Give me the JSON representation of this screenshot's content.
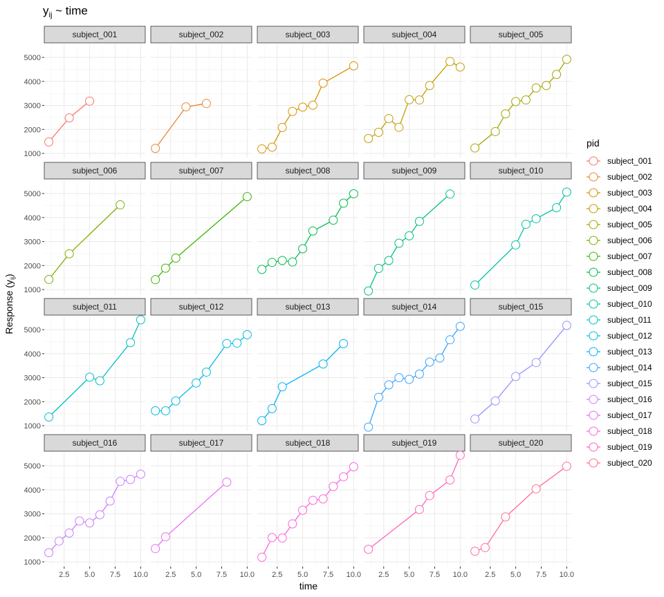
{
  "chart_data": {
    "type": "line",
    "title": "y",
    "title_sub": "ij",
    "title_rest": " ~ time",
    "xlabel": "time",
    "ylabel_main": "Response (y",
    "ylabel_sub": "ij",
    "ylabel_end": ")",
    "legend_title": "pid",
    "legend_position": "right",
    "facet_layout": "5 columns x 4 rows",
    "grid": true,
    "xlim": [
      0.55,
      10.45
    ],
    "ylim": [
      800,
      5550
    ],
    "x_ticks": [
      2.5,
      5.0,
      7.5,
      10.0
    ],
    "x_tick_labels": [
      "2.5",
      "5.0",
      "7.5",
      "10.0"
    ],
    "y_ticks": [
      1000,
      2000,
      3000,
      4000,
      5000
    ],
    "y_tick_labels": [
      "1000",
      "2000",
      "3000",
      "4000",
      "5000"
    ],
    "series": [
      {
        "name": "subject_001",
        "color": "#F8766D",
        "x": [
          1,
          3,
          5
        ],
        "y": [
          1480,
          2480,
          3180
        ]
      },
      {
        "name": "subject_002",
        "color": "#EA8331",
        "x": [
          1,
          4,
          6
        ],
        "y": [
          1210,
          2940,
          3080
        ]
      },
      {
        "name": "subject_003",
        "color": "#D89000",
        "x": [
          1,
          2,
          3,
          4,
          5,
          6,
          7,
          10
        ],
        "y": [
          1190,
          1260,
          2080,
          2750,
          2930,
          3010,
          3930,
          4650
        ]
      },
      {
        "name": "subject_004",
        "color": "#C09B00",
        "x": [
          1,
          2,
          3,
          4,
          5,
          6,
          7,
          9,
          10
        ],
        "y": [
          1620,
          1880,
          2450,
          2090,
          3240,
          3230,
          3830,
          4830,
          4600
        ]
      },
      {
        "name": "subject_005",
        "color": "#A3A500",
        "x": [
          1,
          3,
          4,
          5,
          6,
          7,
          8,
          9,
          10
        ],
        "y": [
          1230,
          1910,
          2650,
          3160,
          3230,
          3730,
          3830,
          4290,
          4920
        ]
      },
      {
        "name": "subject_006",
        "color": "#7CAE00",
        "x": [
          1,
          3,
          8
        ],
        "y": [
          1420,
          2490,
          4530
        ]
      },
      {
        "name": "subject_007",
        "color": "#39B600",
        "x": [
          1,
          2,
          3,
          10
        ],
        "y": [
          1410,
          1890,
          2310,
          4870
        ]
      },
      {
        "name": "subject_008",
        "color": "#00BB4E",
        "x": [
          1,
          2,
          3,
          4,
          5,
          6,
          8,
          9,
          10
        ],
        "y": [
          1840,
          2130,
          2210,
          2150,
          2700,
          3440,
          3890,
          4600,
          4990
        ]
      },
      {
        "name": "subject_009",
        "color": "#00BF7D",
        "x": [
          1,
          2,
          3,
          4,
          5,
          6,
          9
        ],
        "y": [
          940,
          1880,
          2210,
          2930,
          3240,
          3840,
          4980
        ]
      },
      {
        "name": "subject_010",
        "color": "#00C1A3",
        "x": [
          1,
          5,
          6,
          7,
          9,
          10
        ],
        "y": [
          1190,
          2860,
          3720,
          3950,
          4410,
          5060
        ]
      },
      {
        "name": "subject_011",
        "color": "#00BFC4",
        "x": [
          1,
          5,
          6,
          9,
          10
        ],
        "y": [
          1360,
          3020,
          2870,
          4460,
          5410
        ]
      },
      {
        "name": "subject_012",
        "color": "#00BAE0",
        "x": [
          1,
          2,
          3,
          5,
          6,
          8,
          9,
          10
        ],
        "y": [
          1620,
          1620,
          2030,
          2780,
          3230,
          4420,
          4440,
          4790
        ]
      },
      {
        "name": "subject_013",
        "color": "#00B0F6",
        "x": [
          1,
          2,
          3,
          7,
          9
        ],
        "y": [
          1210,
          1710,
          2620,
          3570,
          4420
        ]
      },
      {
        "name": "subject_014",
        "color": "#35A2FF",
        "x": [
          1,
          2,
          3,
          4,
          5,
          6,
          7,
          8,
          9,
          10
        ],
        "y": [
          940,
          2180,
          2700,
          3000,
          2930,
          3150,
          3650,
          3820,
          4580,
          5140
        ]
      },
      {
        "name": "subject_015",
        "color": "#9590FF",
        "x": [
          1,
          3,
          5,
          7,
          10
        ],
        "y": [
          1280,
          2030,
          3050,
          3630,
          5180
        ]
      },
      {
        "name": "subject_016",
        "color": "#C77CFF",
        "x": [
          1,
          2,
          3,
          4,
          5,
          6,
          7,
          8,
          9,
          10
        ],
        "y": [
          1380,
          1860,
          2200,
          2700,
          2620,
          2960,
          3530,
          4350,
          4430,
          4650
        ]
      },
      {
        "name": "subject_017",
        "color": "#E76BF3",
        "x": [
          1,
          2,
          8
        ],
        "y": [
          1550,
          2040,
          4320
        ]
      },
      {
        "name": "subject_018",
        "color": "#FA62DB",
        "x": [
          1,
          2,
          3,
          4,
          5,
          6,
          7,
          8,
          9,
          10
        ],
        "y": [
          1190,
          2010,
          1990,
          2580,
          3150,
          3560,
          3620,
          4140,
          4540,
          4960
        ]
      },
      {
        "name": "subject_019",
        "color": "#FF62BC",
        "x": [
          1,
          6,
          7,
          9,
          10
        ],
        "y": [
          1520,
          3180,
          3760,
          4410,
          5440
        ]
      },
      {
        "name": "subject_020",
        "color": "#FF6C91",
        "x": [
          1,
          2,
          4,
          7,
          10
        ],
        "y": [
          1440,
          1590,
          2870,
          4040,
          4980
        ]
      }
    ]
  }
}
